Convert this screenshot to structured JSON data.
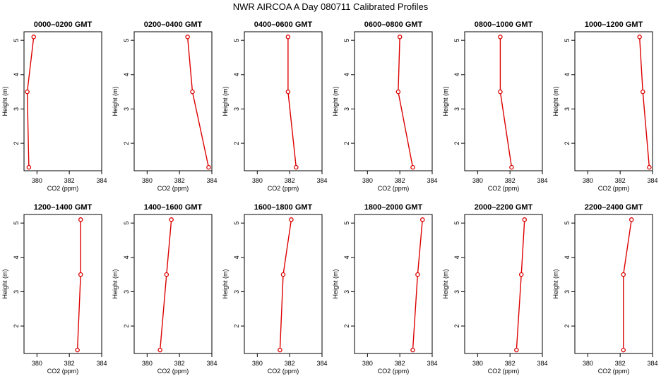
{
  "title": "NWR AIRCOA A  Day 080711  Calibrated Profiles",
  "chart_data": [
    {
      "type": "line",
      "title": "0000–0200 GMT",
      "xlabel": "CO2 (ppm)",
      "ylabel": "Height (m)",
      "xlim": [
        379.2,
        384
      ],
      "ylim": [
        1.2,
        5.25
      ],
      "xticks": [
        380,
        382,
        384
      ],
      "yticks": [
        2,
        3,
        4,
        5
      ],
      "x": [
        379.8,
        379.4,
        379.5
      ],
      "y": [
        5.1,
        3.5,
        1.3
      ]
    },
    {
      "type": "line",
      "title": "0200–0400 GMT",
      "xlabel": "CO2 (ppm)",
      "ylabel": "Height (m)",
      "xlim": [
        379.2,
        384
      ],
      "ylim": [
        1.2,
        5.25
      ],
      "xticks": [
        380,
        382,
        384
      ],
      "yticks": [
        2,
        3,
        4,
        5
      ],
      "x": [
        382.5,
        382.8,
        383.8
      ],
      "y": [
        5.1,
        3.5,
        1.3
      ]
    },
    {
      "type": "line",
      "title": "0400–0600 GMT",
      "xlabel": "CO2 (ppm)",
      "ylabel": "Height (m)",
      "xlim": [
        379.2,
        384
      ],
      "ylim": [
        1.2,
        5.25
      ],
      "xticks": [
        380,
        382,
        384
      ],
      "yticks": [
        2,
        3,
        4,
        5
      ],
      "x": [
        381.9,
        381.9,
        382.4
      ],
      "y": [
        5.1,
        3.5,
        1.3
      ]
    },
    {
      "type": "line",
      "title": "0600–0800 GMT",
      "xlabel": "CO2 (ppm)",
      "ylabel": "Height (m)",
      "xlim": [
        379.2,
        384
      ],
      "ylim": [
        1.2,
        5.25
      ],
      "xticks": [
        380,
        382,
        384
      ],
      "yticks": [
        2,
        3,
        4,
        5
      ],
      "x": [
        382.0,
        381.9,
        382.8
      ],
      "y": [
        5.1,
        3.5,
        1.3
      ]
    },
    {
      "type": "line",
      "title": "0800–1000 GMT",
      "xlabel": "CO2 (ppm)",
      "ylabel": "Height (m)",
      "xlim": [
        379.2,
        384
      ],
      "ylim": [
        1.2,
        5.25
      ],
      "xticks": [
        380,
        382,
        384
      ],
      "yticks": [
        2,
        3,
        4,
        5
      ],
      "x": [
        381.4,
        381.4,
        382.1
      ],
      "y": [
        5.1,
        3.5,
        1.3
      ]
    },
    {
      "type": "line",
      "title": "1000–1200 GMT",
      "xlabel": "CO2 (ppm)",
      "ylabel": "Height (m)",
      "xlim": [
        379.2,
        384
      ],
      "ylim": [
        1.2,
        5.25
      ],
      "xticks": [
        380,
        382,
        384
      ],
      "yticks": [
        2,
        3,
        4,
        5
      ],
      "x": [
        383.2,
        383.4,
        383.8
      ],
      "y": [
        5.1,
        3.5,
        1.3
      ]
    },
    {
      "type": "line",
      "title": "1200–1400 GMT",
      "xlabel": "CO2 (ppm)",
      "ylabel": "Height (m)",
      "xlim": [
        379.2,
        384
      ],
      "ylim": [
        1.2,
        5.25
      ],
      "xticks": [
        380,
        382,
        384
      ],
      "yticks": [
        2,
        3,
        4,
        5
      ],
      "x": [
        382.7,
        382.7,
        382.5
      ],
      "y": [
        5.1,
        3.5,
        1.3
      ]
    },
    {
      "type": "line",
      "title": "1400–1600 GMT",
      "xlabel": "CO2 (ppm)",
      "ylabel": "Height (m)",
      "xlim": [
        379.2,
        384
      ],
      "ylim": [
        1.2,
        5.25
      ],
      "xticks": [
        380,
        382,
        384
      ],
      "yticks": [
        2,
        3,
        4,
        5
      ],
      "x": [
        381.5,
        381.2,
        380.8
      ],
      "y": [
        5.1,
        3.5,
        1.3
      ]
    },
    {
      "type": "line",
      "title": "1600–1800 GMT",
      "xlabel": "CO2 (ppm)",
      "ylabel": "Height (m)",
      "xlim": [
        379.2,
        384
      ],
      "ylim": [
        1.2,
        5.25
      ],
      "xticks": [
        380,
        382,
        384
      ],
      "yticks": [
        2,
        3,
        4,
        5
      ],
      "x": [
        382.1,
        381.6,
        381.4
      ],
      "y": [
        5.1,
        3.5,
        1.3
      ]
    },
    {
      "type": "line",
      "title": "1800–2000 GMT",
      "xlabel": "CO2 (ppm)",
      "ylabel": "Height (m)",
      "xlim": [
        379.2,
        384
      ],
      "ylim": [
        1.2,
        5.25
      ],
      "xticks": [
        380,
        382,
        384
      ],
      "yticks": [
        2,
        3,
        4,
        5
      ],
      "x": [
        383.4,
        383.1,
        382.8
      ],
      "y": [
        5.1,
        3.5,
        1.3
      ]
    },
    {
      "type": "line",
      "title": "2000–2200 GMT",
      "xlabel": "CO2 (ppm)",
      "ylabel": "Height (m)",
      "xlim": [
        379.2,
        384
      ],
      "ylim": [
        1.2,
        5.25
      ],
      "xticks": [
        380,
        382,
        384
      ],
      "yticks": [
        2,
        3,
        4,
        5
      ],
      "x": [
        382.9,
        382.7,
        382.4
      ],
      "y": [
        5.1,
        3.5,
        1.3
      ]
    },
    {
      "type": "line",
      "title": "2200–2400 GMT",
      "xlabel": "CO2 (ppm)",
      "ylabel": "Height (m)",
      "xlim": [
        379.2,
        384
      ],
      "ylim": [
        1.2,
        5.25
      ],
      "xticks": [
        380,
        382,
        384
      ],
      "yticks": [
        2,
        3,
        4,
        5
      ],
      "x": [
        382.7,
        382.2,
        382.2
      ],
      "y": [
        5.1,
        3.5,
        1.3
      ]
    }
  ],
  "series_color": "#dd0000",
  "marker": "open-circle"
}
